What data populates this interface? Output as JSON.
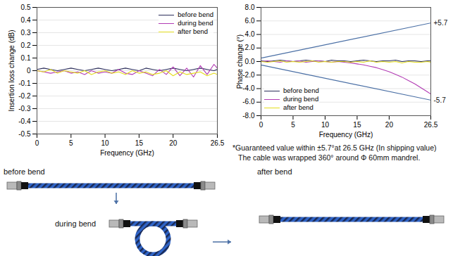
{
  "chart_data": [
    {
      "type": "line",
      "y_label": "Insertion loss change (dB)",
      "x_label": "Frequency (GHz)",
      "x": [
        0,
        1,
        2,
        3,
        4,
        5,
        6,
        7,
        8,
        9,
        10,
        11,
        12,
        13,
        14,
        15,
        16,
        17,
        18,
        19,
        20,
        21,
        22,
        23,
        24,
        25,
        26,
        26.5
      ],
      "xlim": [
        0,
        26.5
      ],
      "xticks": [
        0,
        5,
        10,
        15,
        20,
        26.5
      ],
      "ylim": [
        -0.5,
        0.5
      ],
      "yticks": [
        -0.5,
        -0.4,
        -0.3,
        -0.2,
        -0.1,
        0,
        0.1,
        0.2,
        0.3,
        0.4,
        0.5
      ],
      "grid": true,
      "legend": "top-right",
      "series": [
        {
          "name": "before bend",
          "color": "#2b2d5a",
          "values": [
            0.01,
            0.02,
            0.01,
            0.0,
            0.01,
            0.02,
            0.01,
            0.0,
            0.01,
            0.02,
            0.01,
            0.0,
            0.01,
            0.02,
            0.01,
            0.0,
            0.02,
            0.01,
            0.0,
            0.01,
            0.02,
            0.01,
            0.0,
            0.01,
            0.02,
            0.01,
            0.0,
            0.01
          ]
        },
        {
          "name": "during bend",
          "color": "#b23cb4",
          "values": [
            0.0,
            -0.01,
            -0.02,
            -0.01,
            0.0,
            -0.02,
            -0.01,
            -0.03,
            0.0,
            -0.02,
            -0.01,
            -0.02,
            0.01,
            -0.02,
            -0.03,
            0.0,
            -0.02,
            -0.04,
            0.01,
            -0.03,
            0.03,
            -0.04,
            0.02,
            -0.05,
            0.04,
            -0.03,
            0.05,
            0.02
          ]
        },
        {
          "name": "after bend",
          "color": "#e3dc1c",
          "values": [
            0.0,
            -0.01,
            0.01,
            -0.02,
            0.0,
            -0.01,
            -0.02,
            0.0,
            -0.03,
            -0.01,
            0.0,
            -0.02,
            -0.01,
            -0.03,
            0.0,
            -0.02,
            -0.01,
            -0.03,
            -0.02,
            0.0,
            -0.04,
            -0.01,
            -0.03,
            -0.02,
            -0.01,
            -0.04,
            -0.02,
            -0.03
          ]
        }
      ]
    },
    {
      "type": "line",
      "y_label": "Phase change (°)",
      "x_label": "Frequency (GHz)",
      "x": [
        0,
        1,
        2,
        3,
        4,
        5,
        6,
        7,
        8,
        9,
        10,
        11,
        12,
        13,
        14,
        15,
        16,
        17,
        18,
        19,
        20,
        21,
        22,
        23,
        24,
        25,
        26,
        26.5
      ],
      "xlim": [
        0,
        26.5
      ],
      "xticks": [
        0,
        5,
        10,
        15,
        20,
        26.5
      ],
      "ylim": [
        -8,
        8
      ],
      "yticks": [
        {
          "value": -8,
          "label": "-8.0"
        },
        {
          "value": -6,
          "label": "-6.0"
        },
        {
          "value": -4,
          "label": "-4.0"
        },
        {
          "value": -2,
          "label": "-2.0"
        },
        {
          "value": 0,
          "label": "0.0"
        },
        {
          "value": 2,
          "label": "2.0"
        },
        {
          "value": 4,
          "label": "4.0"
        },
        {
          "value": 6,
          "label": "6.0"
        },
        {
          "value": 8,
          "label": "8.0"
        }
      ],
      "grid": true,
      "legend": "bottom-left",
      "series": [
        {
          "name": "before bend",
          "color": "#2b2d5a",
          "values": [
            0.1,
            0.0,
            0.1,
            0.2,
            0.1,
            0.0,
            0.1,
            0.2,
            0.1,
            0.1,
            0.0,
            0.2,
            0.1,
            0.1,
            0.0,
            0.1,
            0.2,
            0.1,
            0.0,
            0.1,
            0.1,
            0.2,
            0.0,
            0.1,
            0.1,
            0.0,
            0.1,
            0.1
          ]
        },
        {
          "name": "during bend",
          "color": "#b23cb4",
          "values": [
            0.0,
            0.1,
            0.0,
            -0.1,
            0.1,
            0.0,
            0.1,
            -0.1,
            0.0,
            0.1,
            0.0,
            -0.1,
            0.0,
            -0.1,
            -0.2,
            -0.35,
            -0.5,
            -0.7,
            -0.9,
            -1.2,
            -1.5,
            -1.9,
            -2.3,
            -2.8,
            -3.3,
            -3.9,
            -4.5,
            -4.8
          ]
        },
        {
          "name": "after bend",
          "color": "#e3dc1c",
          "values": [
            0.0,
            -0.1,
            0.0,
            0.1,
            -0.1,
            0.0,
            -0.1,
            0.0,
            0.1,
            -0.1,
            0.0,
            -0.1,
            0.0,
            0.0,
            -0.1,
            0.0,
            -0.1,
            0.1,
            -0.1,
            0.0,
            -0.1,
            0.0,
            -0.2,
            0.0,
            -0.1,
            -0.1,
            0.0,
            -0.1
          ]
        }
      ],
      "reference_lines": [
        {
          "x": [
            0,
            26.5
          ],
          "values": [
            0.5,
            5.7
          ],
          "label": "+5.7",
          "color": "#4a6fa5"
        },
        {
          "x": [
            0,
            26.5
          ],
          "values": [
            -0.5,
            -5.7
          ],
          "label": "-5.7",
          "color": "#4a6fa5"
        }
      ],
      "annotations": [
        "*Guaranteed value within ±5.7°at 26.5 GHz (In shipping value)",
        "The cable was wrapped 360° around Φ 60mm mandrel."
      ]
    }
  ],
  "diagram": {
    "labels": [
      "before bend",
      "during bend",
      "after bend"
    ]
  }
}
